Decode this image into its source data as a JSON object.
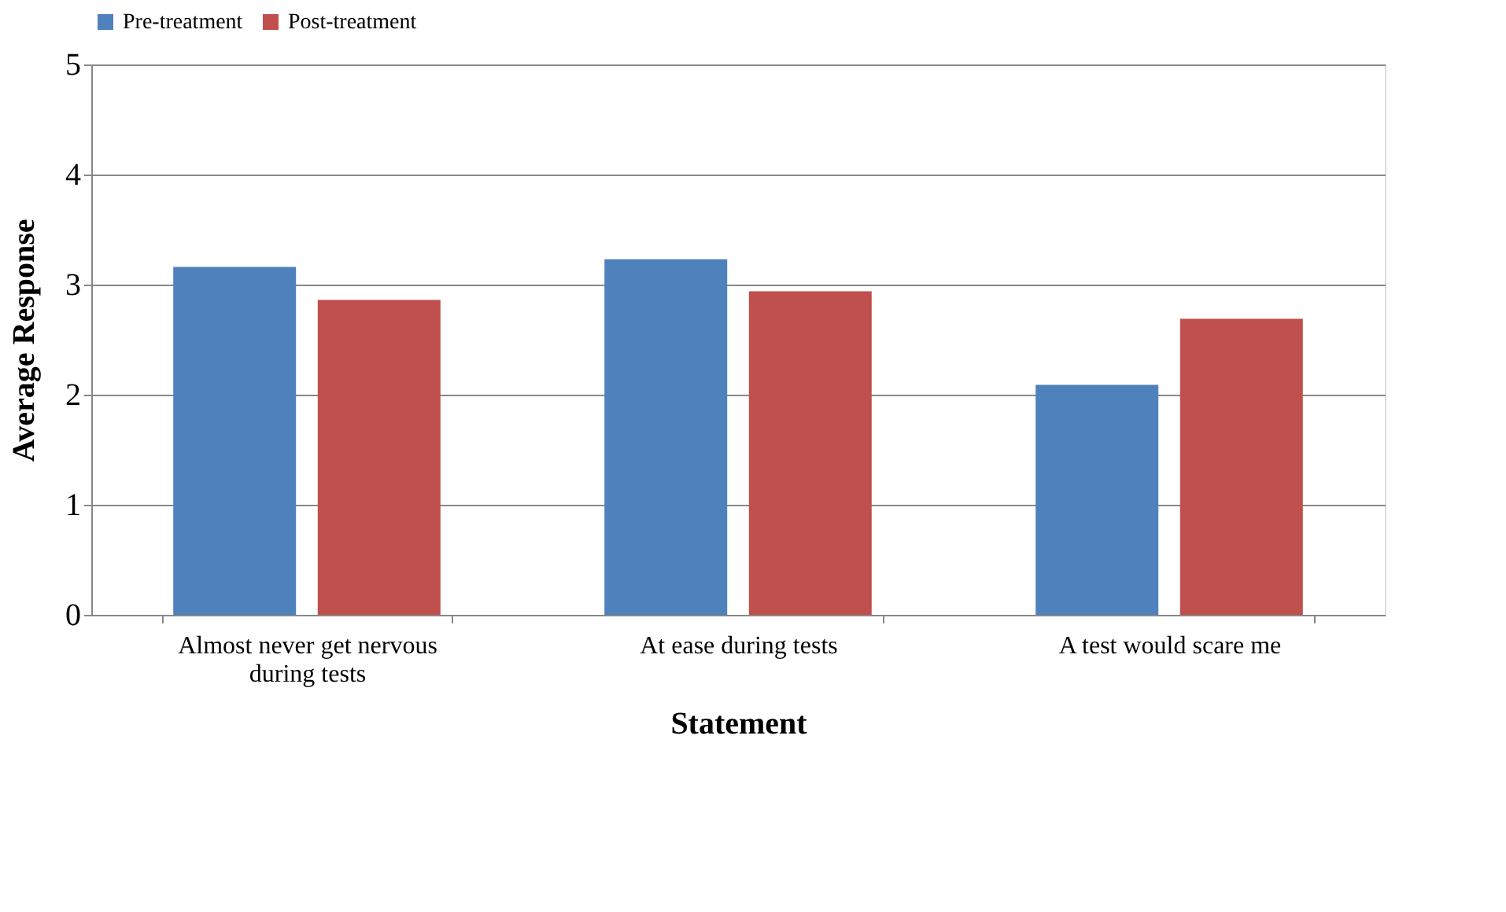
{
  "chart_data": {
    "type": "bar",
    "xlabel": "Statement",
    "ylabel": "Average Response",
    "categories": [
      "Almost never get nervous during tests",
      "At ease during tests",
      "A test would scare me"
    ],
    "series": [
      {
        "name": "Pre-treatment",
        "color": "#4f81bd",
        "values": [
          3.16,
          3.23,
          2.09
        ]
      },
      {
        "name": "Post-treatment",
        "color": "#c0504d",
        "values": [
          2.86,
          2.94,
          2.69
        ]
      }
    ],
    "ylim": [
      0,
      5
    ],
    "yticks": [
      0,
      1,
      2,
      3,
      4,
      5
    ],
    "grid": "y",
    "legend": "top"
  }
}
